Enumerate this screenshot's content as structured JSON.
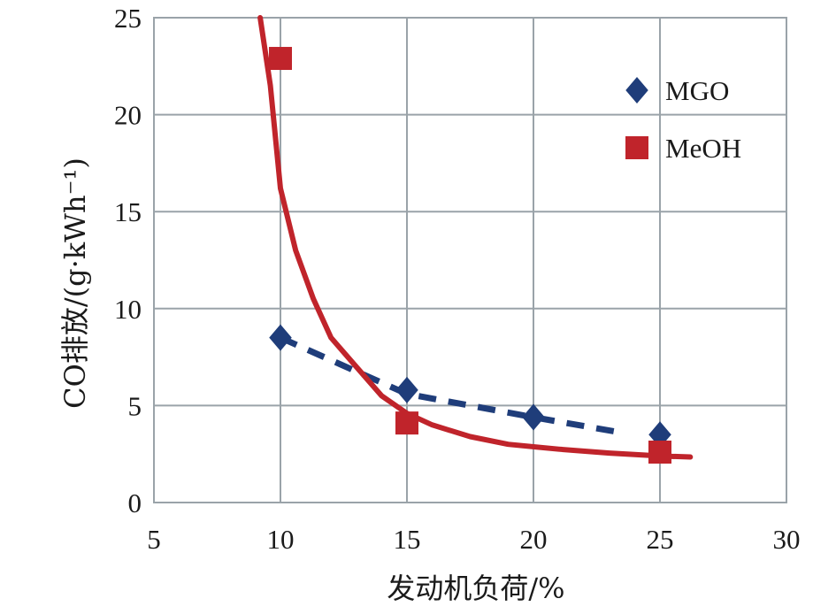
{
  "chart_data": {
    "type": "scatter",
    "title": "",
    "xlabel": "发动机负荷/%",
    "ylabel": "CO排放/(g·kWh⁻¹)",
    "xlim": [
      5,
      30
    ],
    "ylim": [
      0,
      25
    ],
    "x_ticks": [
      5,
      10,
      15,
      20,
      25,
      30
    ],
    "y_ticks": [
      0,
      5,
      10,
      15,
      20,
      25
    ],
    "grid": true,
    "legend_position": "top-right",
    "series": [
      {
        "name": "MGO",
        "marker": "diamond",
        "color": "#1f3d7a",
        "points": [
          {
            "x": 10,
            "y": 8.5
          },
          {
            "x": 15,
            "y": 5.8
          },
          {
            "x": 20,
            "y": 4.4
          },
          {
            "x": 25,
            "y": 3.5
          }
        ],
        "trendline": {
          "style": "dashed",
          "color": "#1f3d7a",
          "points": [
            {
              "x": 10,
              "y": 8.5
            },
            {
              "x": 15,
              "y": 5.6
            },
            {
              "x": 20,
              "y": 4.4
            },
            {
              "x": 23.5,
              "y": 3.6
            }
          ]
        }
      },
      {
        "name": "MeOH",
        "marker": "square",
        "color": "#c0242b",
        "points": [
          {
            "x": 10,
            "y": 22.9
          },
          {
            "x": 15,
            "y": 4.1
          },
          {
            "x": 25,
            "y": 2.6
          }
        ],
        "trendline": {
          "style": "solid",
          "color": "#c0242b",
          "points": [
            {
              "x": 9.2,
              "y": 25
            },
            {
              "x": 9.6,
              "y": 21.5
            },
            {
              "x": 10.0,
              "y": 16.2
            },
            {
              "x": 10.6,
              "y": 13.0
            },
            {
              "x": 11.3,
              "y": 10.5
            },
            {
              "x": 12.0,
              "y": 8.5
            },
            {
              "x": 13.0,
              "y": 7.0
            },
            {
              "x": 14.0,
              "y": 5.5
            },
            {
              "x": 15.0,
              "y": 4.6
            },
            {
              "x": 16.0,
              "y": 4.0
            },
            {
              "x": 17.5,
              "y": 3.4
            },
            {
              "x": 19.0,
              "y": 3.0
            },
            {
              "x": 21.0,
              "y": 2.75
            },
            {
              "x": 23.0,
              "y": 2.55
            },
            {
              "x": 25.0,
              "y": 2.4
            },
            {
              "x": 26.2,
              "y": 2.35
            }
          ]
        }
      }
    ]
  }
}
